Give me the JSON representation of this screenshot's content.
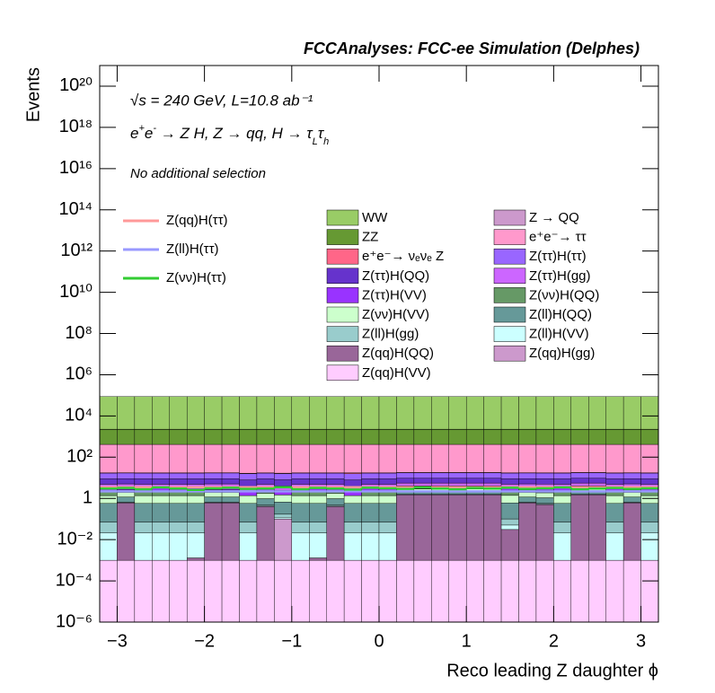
{
  "chart_data": {
    "type": "histogram",
    "stacked": true,
    "log_y": true,
    "title": "FCCAnalyses: FCC-ee Simulation (Delphes)",
    "energy_line": "√s = 240 GeV, L=10.8 ab⁻¹",
    "process_line": [
      "e",
      "+",
      "e",
      "-",
      " → Z H, Z  → qq, H  → τ",
      "L",
      "τ",
      "h"
    ],
    "selection": "No additional selection",
    "xlabel": "Reco leading Z daughter ϕ",
    "ylabel": "Events",
    "xlim": [
      -3.2,
      3.2
    ],
    "ylim": [
      1e-06,
      1e+21
    ],
    "xticks": [
      {
        "value": -3,
        "label": "−3"
      },
      {
        "value": -2,
        "label": "−2"
      },
      {
        "value": -1,
        "label": "−1"
      },
      0,
      1,
      2,
      3
    ],
    "yticks": [
      {
        "value": 1e-06,
        "label": "10⁻⁶"
      },
      {
        "value": 0.0001,
        "label": "10⁻⁴"
      },
      {
        "value": 0.01,
        "label": "10⁻²"
      },
      1,
      {
        "value": 100,
        "label": "10²"
      },
      {
        "value": 10000,
        "label": "10⁴"
      },
      {
        "value": 1000000.0,
        "label": "10⁶"
      },
      {
        "value": 100000000.0,
        "label": "10⁸"
      },
      {
        "value": 10000000000.0,
        "label": "10¹⁰"
      },
      {
        "value": 1000000000000.0,
        "label": "10¹²"
      },
      {
        "value": 100000000000000.0,
        "label": "10¹⁴"
      },
      {
        "value": 1e+16,
        "label": "10¹⁶"
      },
      {
        "value": 1e+18,
        "label": "10¹⁸"
      },
      {
        "value": 1e+20,
        "label": "10²⁰"
      }
    ],
    "bins": [
      -3.2,
      -3,
      -2.8,
      -2.6,
      -2.4,
      -2.2,
      -2,
      -1.8,
      -1.6,
      -1.4,
      -1.2,
      -1,
      -0.8,
      -0.6,
      -0.4,
      -0.2,
      0,
      0.2,
      0.4,
      0.6,
      0.8,
      1,
      1.2,
      1.4,
      1.6,
      1.8,
      2,
      2.2,
      2.4,
      2.6,
      2.8,
      3,
      3.2
    ],
    "series": [
      {
        "name": "WW",
        "color": "#99cc66",
        "values": [
          85000,
          85000,
          85000,
          85000,
          85000,
          85000,
          85000,
          85000,
          85000,
          85000,
          85000,
          85000,
          85000,
          85000,
          85000,
          85000,
          85000,
          85000,
          85000,
          85000,
          85000,
          85000,
          85000,
          85000,
          85000,
          85000,
          85000,
          85000,
          85000,
          85000,
          85000,
          85000
        ]
      },
      {
        "name": "Z → QQ",
        "color": "#cc99cc",
        "values": [
          60,
          60,
          60,
          60,
          60,
          60,
          60,
          60,
          60,
          60,
          60,
          60,
          60,
          60,
          60,
          60,
          60,
          60,
          60,
          60,
          60,
          60,
          60,
          60,
          60,
          60,
          60,
          60,
          60,
          60,
          60,
          60
        ]
      },
      {
        "name": "ZZ",
        "color": "#669933",
        "values": [
          1800,
          1800,
          1800,
          1800,
          1800,
          1800,
          1800,
          1800,
          1800,
          1800,
          1800,
          1800,
          1800,
          1800,
          1800,
          1800,
          1800,
          1800,
          1800,
          1800,
          1800,
          1800,
          1800,
          1800,
          1800,
          1800,
          1800,
          1800,
          1800,
          1800,
          1800,
          1800
        ]
      },
      {
        "name": "e⁺e⁻→ ττ",
        "color": "#ff99cc",
        "values": [
          400,
          400,
          400,
          400,
          400,
          400,
          400,
          400,
          400,
          400,
          400,
          400,
          400,
          400,
          400,
          400,
          400,
          400,
          400,
          400,
          400,
          400,
          400,
          400,
          400,
          400,
          400,
          400,
          400,
          400,
          400,
          400
        ]
      },
      {
        "name": "e⁺e⁻→ νₑνₑ Z",
        "color": "#ff6688",
        "values": [
          0.5,
          0.5,
          0.5,
          0.5,
          0.5,
          0.5,
          0.5,
          0.5,
          0.8,
          0.5,
          0.8,
          0.5,
          0.5,
          0.5,
          1.5,
          0.5,
          0.5,
          0.5,
          0.5,
          0.5,
          0.5,
          0.5,
          0.5,
          0.5,
          0.5,
          0.5,
          0.5,
          0.5,
          0.5,
          0.5,
          0.5,
          0.5
        ]
      },
      {
        "name": "Z(ττ)H(ττ)",
        "color": "#9966ff",
        "values": [
          8,
          8,
          8,
          8,
          8,
          8,
          8,
          8,
          8,
          8,
          8,
          8,
          8,
          8,
          8,
          8,
          8,
          8,
          8,
          8,
          8,
          8,
          8,
          8,
          8,
          8,
          8,
          8,
          8,
          8,
          8,
          8
        ]
      },
      {
        "name": "Z(ττ)H(QQ)",
        "color": "#6633cc",
        "values": [
          4,
          4,
          4,
          4,
          4,
          4,
          4,
          4,
          4,
          4,
          4,
          4,
          4,
          4,
          4,
          4,
          4,
          4,
          4,
          4,
          4,
          4,
          4,
          4,
          4,
          4,
          4,
          4,
          4,
          4,
          4,
          4
        ]
      },
      {
        "name": "Z(ττ)H(gg)",
        "color": "#cc66ff",
        "values": [
          1.5,
          1.5,
          1.5,
          1.5,
          1.5,
          1.5,
          1.5,
          1.5,
          1.5,
          1.5,
          1.5,
          1.5,
          1.5,
          1.5,
          1.5,
          1.5,
          1.5,
          1.5,
          1.5,
          1.5,
          1.5,
          1.5,
          1.5,
          1.5,
          1.5,
          1.5,
          1.5,
          1.5,
          1.5,
          1.5,
          1.5,
          1.5
        ]
      },
      {
        "name": "Z(ττ)H(VV)",
        "color": "#9933ff",
        "values": [
          1,
          1,
          1,
          1,
          1,
          1,
          1,
          1,
          1,
          1,
          1,
          1,
          1,
          1,
          1,
          1,
          1,
          1,
          1,
          1,
          1,
          1,
          1,
          1,
          1,
          1,
          1,
          1,
          1,
          1,
          1,
          1
        ]
      },
      {
        "name": "Z(νν)H(QQ)",
        "color": "#669966",
        "values": [
          1,
          0.6,
          1,
          1,
          1,
          1,
          0.6,
          0.6,
          0,
          0.6,
          0,
          1,
          1,
          0.6,
          0,
          1,
          1,
          0.2,
          0.2,
          0.2,
          0.2,
          0.2,
          0.2,
          1,
          0.6,
          0.6,
          1,
          0.2,
          0.2,
          1,
          0.6,
          1
        ]
      },
      {
        "name": "Z(νν)H(VV)",
        "color": "#ccffcc",
        "values": [
          0.8,
          0.8,
          0.8,
          0.8,
          0.8,
          0.8,
          0.8,
          0.8,
          0.8,
          0.8,
          0.8,
          0.8,
          0.8,
          0.8,
          0.8,
          0.8,
          0.8,
          0.8,
          0.8,
          0.8,
          0.8,
          0.8,
          0.8,
          0.8,
          0.8,
          0.8,
          0.8,
          0.8,
          0.8,
          0.8,
          0.8,
          0.8
        ]
      },
      {
        "name": "Z(ll)H(QQ)",
        "color": "#669999",
        "values": [
          0.5,
          0.5,
          0.5,
          0.5,
          0.5,
          0.5,
          0.5,
          0.5,
          0.5,
          0.5,
          0.5,
          0.5,
          0.5,
          0.5,
          0.5,
          0.5,
          0.5,
          0.5,
          0.5,
          0.5,
          0.5,
          0.5,
          0.5,
          0.5,
          0.5,
          0.5,
          0.5,
          0.5,
          0.5,
          0.5,
          0.5,
          0.5
        ]
      },
      {
        "name": "Z(ll)H(gg)",
        "color": "#99cccc",
        "values": [
          0.05,
          0.05,
          0.05,
          0.05,
          0.05,
          0.05,
          0.05,
          0.05,
          0.05,
          0.05,
          0.05,
          0.05,
          0.05,
          0.05,
          0.05,
          0.05,
          0.05,
          0.05,
          0.05,
          0.05,
          0.05,
          0.05,
          0.05,
          0.05,
          0.05,
          0.05,
          0.05,
          0.05,
          0.05,
          0.05,
          0.05,
          0.05
        ]
      },
      {
        "name": "Z(ll)H(VV)",
        "color": "#ccffff",
        "values": [
          0.02,
          0.02,
          0.02,
          0.02,
          0.02,
          0.02,
          0.02,
          0.02,
          0.02,
          0.02,
          0.02,
          0.02,
          0.02,
          0.02,
          0.02,
          0.02,
          0.02,
          0.02,
          0.02,
          0.02,
          0.02,
          0.02,
          0.02,
          0.02,
          0.02,
          0.02,
          0.02,
          0.02,
          0.02,
          0.02,
          0.02,
          0.02
        ]
      },
      {
        "name": "Z(qq)H(QQ)",
        "color": "#996699",
        "values": [
          0,
          0.6,
          0,
          0,
          0,
          0.0003,
          0.6,
          0.6,
          0,
          0.4,
          0,
          0,
          0.0003,
          0.4,
          0,
          0,
          0,
          1.5,
          1.5,
          1.5,
          1.5,
          1.5,
          1.5,
          0.03,
          0.6,
          0.5,
          0,
          1.5,
          1.5,
          0,
          0.6,
          0
        ]
      },
      {
        "name": "Z(qq)H(gg)",
        "color": "#cc99cc",
        "values": [
          0,
          0,
          0,
          0,
          0,
          0,
          0,
          0,
          0,
          0,
          0.1,
          0,
          0,
          0,
          0,
          0,
          0,
          0,
          0,
          0,
          0,
          0,
          0,
          0,
          0,
          0,
          0,
          0,
          0,
          0,
          0,
          0
        ]
      },
      {
        "name": "Z(qq)H(VV)",
        "color": "#ffccff",
        "values": [
          0.001,
          0.001,
          0.001,
          0.001,
          0.001,
          0.001,
          0.001,
          0.001,
          0.001,
          0.001,
          0.001,
          0.001,
          0.001,
          0.001,
          0.001,
          0.001,
          0.001,
          0.001,
          0.001,
          0.001,
          0.001,
          0.001,
          0.001,
          0.001,
          0.001,
          0.001,
          0.001,
          0.001,
          0.001,
          0.001,
          0.001,
          0.001
        ]
      }
    ],
    "overlay_series": [
      {
        "name": "Z(qq)H(ττ)",
        "color": "#ff9999",
        "values": [
          3.5,
          3.5,
          3.5,
          3.5,
          3.5,
          3.5,
          3.5,
          3.5,
          3.5,
          3.5,
          3.5,
          3.5,
          3.5,
          3.5,
          3.5,
          3.5,
          3.5,
          3.5,
          3.5,
          3.5,
          3.5,
          3.5,
          3.5,
          3.5,
          3.5,
          3.5,
          3.5,
          3.5,
          3.5,
          3.5,
          3.5,
          3.5
        ]
      },
      {
        "name": "Z(ll)H(ττ)",
        "color": "#9999ff",
        "values": [
          2.2,
          2.2,
          2.2,
          2.2,
          2.2,
          2.2,
          2.2,
          2.2,
          2.2,
          2.2,
          2.2,
          2.2,
          2.2,
          2.2,
          2.2,
          2.2,
          2.2,
          2.2,
          2.2,
          2.2,
          2.2,
          2.2,
          2.2,
          2.2,
          2.2,
          2.2,
          2.2,
          2.2,
          2.2,
          2.2,
          2.2,
          2.2
        ]
      },
      {
        "name": "Z(νν)H(ττ)",
        "color": "#33cc33",
        "values": [
          3,
          3.2,
          2.8,
          3.4,
          3,
          2.6,
          3.1,
          3.3,
          2.9,
          3,
          3.5,
          2.8,
          3.2,
          3,
          2.7,
          3.3,
          3.1,
          2.9,
          3.4,
          3,
          2.8,
          3.2,
          3,
          3.3,
          2.9,
          3.1,
          3.4,
          2.8,
          3,
          3.2,
          2.9,
          3.1
        ]
      }
    ]
  }
}
